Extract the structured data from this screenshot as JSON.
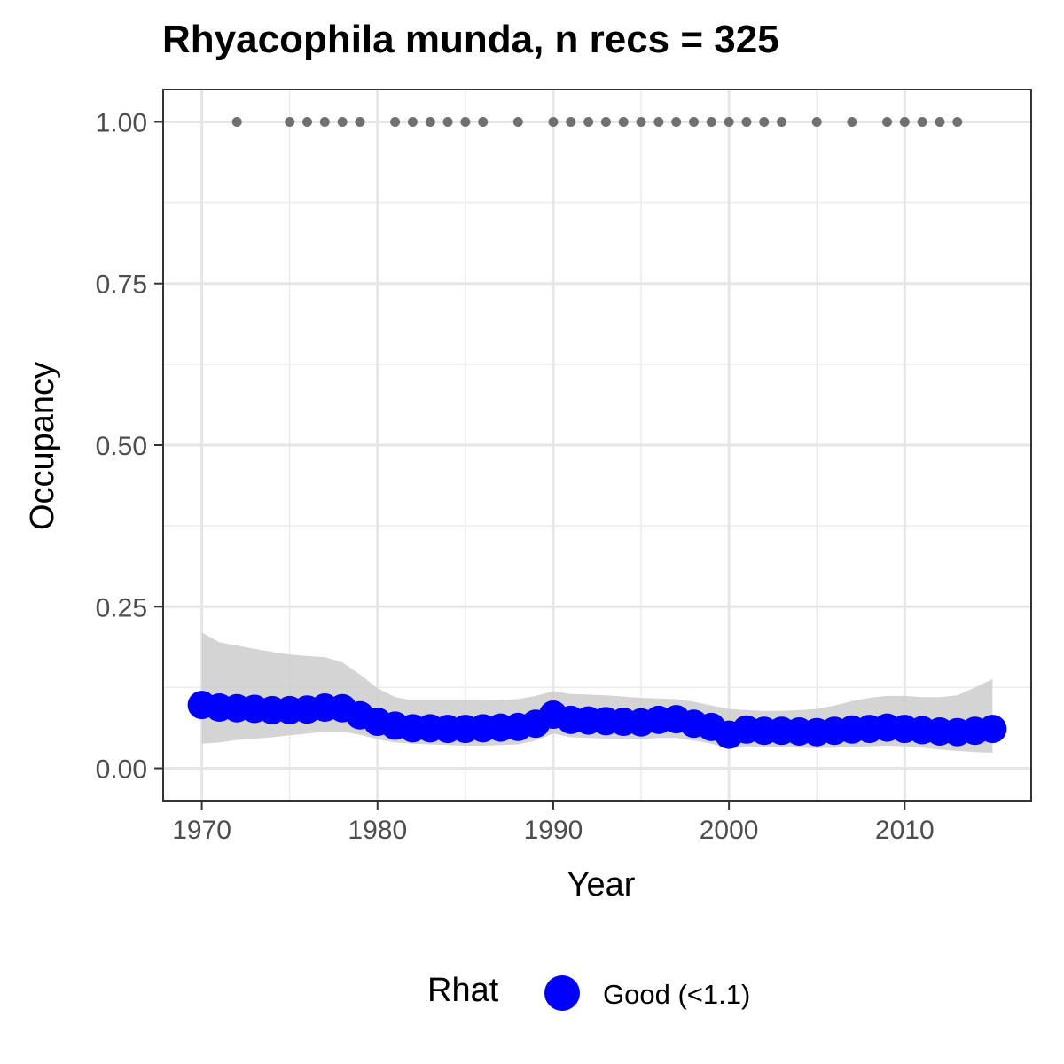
{
  "chart_data": {
    "type": "line",
    "title": "Rhyacophila munda, n recs = 325",
    "xlabel": "Year",
    "ylabel": "Occupancy",
    "xlim": [
      1967.8,
      2017.2
    ],
    "ylim": [
      -0.05,
      1.05
    ],
    "x_ticks": [
      1970,
      1980,
      1990,
      2000,
      2010
    ],
    "y_ticks": [
      0.0,
      0.25,
      0.5,
      0.75,
      1.0
    ],
    "y_tick_labels": [
      "0.00",
      "0.25",
      "0.50",
      "0.75",
      "1.00"
    ],
    "grid": true,
    "series": [
      {
        "name": "Occupancy",
        "color": "#0000ff",
        "x": [
          1970,
          1971,
          1972,
          1973,
          1974,
          1975,
          1976,
          1977,
          1978,
          1979,
          1980,
          1981,
          1982,
          1983,
          1984,
          1985,
          1986,
          1987,
          1988,
          1989,
          1990,
          1991,
          1992,
          1993,
          1994,
          1995,
          1996,
          1997,
          1998,
          1999,
          2000,
          2001,
          2002,
          2003,
          2004,
          2005,
          2006,
          2007,
          2008,
          2009,
          2010,
          2011,
          2012,
          2013,
          2014,
          2015
        ],
        "y": [
          0.098,
          0.094,
          0.093,
          0.092,
          0.09,
          0.09,
          0.091,
          0.094,
          0.093,
          0.082,
          0.072,
          0.066,
          0.062,
          0.062,
          0.061,
          0.061,
          0.062,
          0.063,
          0.064,
          0.069,
          0.083,
          0.075,
          0.074,
          0.073,
          0.072,
          0.071,
          0.075,
          0.076,
          0.069,
          0.064,
          0.052,
          0.06,
          0.058,
          0.058,
          0.057,
          0.056,
          0.058,
          0.06,
          0.061,
          0.063,
          0.061,
          0.059,
          0.057,
          0.056,
          0.058,
          0.061
        ],
        "lower": [
          0.038,
          0.04,
          0.044,
          0.046,
          0.048,
          0.051,
          0.054,
          0.057,
          0.057,
          0.052,
          0.045,
          0.04,
          0.038,
          0.037,
          0.036,
          0.035,
          0.035,
          0.036,
          0.037,
          0.043,
          0.054,
          0.048,
          0.047,
          0.046,
          0.045,
          0.045,
          0.047,
          0.047,
          0.043,
          0.038,
          0.03,
          0.034,
          0.033,
          0.033,
          0.032,
          0.031,
          0.032,
          0.033,
          0.034,
          0.035,
          0.034,
          0.032,
          0.029,
          0.027,
          0.025,
          0.024
        ],
        "upper": [
          0.21,
          0.195,
          0.19,
          0.185,
          0.18,
          0.176,
          0.174,
          0.172,
          0.164,
          0.145,
          0.124,
          0.11,
          0.105,
          0.105,
          0.105,
          0.105,
          0.105,
          0.106,
          0.107,
          0.112,
          0.119,
          0.115,
          0.114,
          0.113,
          0.111,
          0.109,
          0.108,
          0.107,
          0.103,
          0.097,
          0.092,
          0.09,
          0.089,
          0.089,
          0.09,
          0.092,
          0.097,
          0.104,
          0.109,
          0.112,
          0.112,
          0.11,
          0.11,
          0.113,
          0.125,
          0.138
        ]
      }
    ],
    "observations": {
      "color": "#707070",
      "y": 1.0,
      "x": [
        1972,
        1975,
        1976,
        1977,
        1978,
        1979,
        1981,
        1982,
        1983,
        1984,
        1985,
        1986,
        1988,
        1990,
        1991,
        1992,
        1993,
        1994,
        1995,
        1996,
        1997,
        1998,
        1999,
        2000,
        2001,
        2002,
        2003,
        2005,
        2007,
        2009,
        2010,
        2011,
        2012,
        2013
      ]
    },
    "ribbon_color": "#cccccc",
    "legend": {
      "title": "Rhat",
      "label": "Good (<1.1)",
      "color": "#0000ff",
      "placement": "bottom"
    }
  }
}
